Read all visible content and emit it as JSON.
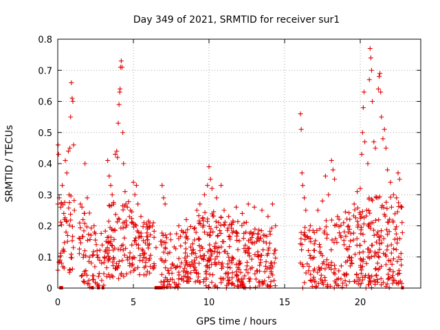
{
  "chart_data": {
    "type": "scatter",
    "title": "Day 349 of 2021, SRMTID for receiver sur1",
    "xlabel": "GPS time / hours",
    "ylabel": "SRMTID / TECUs",
    "xlim": [
      0,
      24
    ],
    "ylim": [
      0,
      0.8
    ],
    "x_ticks": [
      0,
      5,
      10,
      15,
      20
    ],
    "y_ticks": [
      0,
      0.1,
      0.2,
      0.3,
      0.4,
      0.5,
      0.6,
      0.7,
      0.8
    ],
    "x_tick_labels": [
      "0",
      "5",
      "10",
      "15",
      "20"
    ],
    "y_tick_labels": [
      "0",
      "0.1",
      "0.2",
      "0.3",
      "0.4",
      "0.5",
      "0.6",
      "0.7",
      "0.8"
    ],
    "grid": true,
    "marker": "plus",
    "color": "#e00000",
    "series": [
      {
        "name": "SRMTID",
        "points": [
          [
            0.02,
            0.46
          ],
          [
            0.05,
            0.43
          ],
          [
            0.1,
            0.29
          ],
          [
            0.2,
            0.26
          ],
          [
            0.3,
            0.33
          ],
          [
            0.4,
            0.24
          ],
          [
            0.45,
            0.22
          ],
          [
            0.5,
            0.41
          ],
          [
            0.6,
            0.37
          ],
          [
            0.7,
            0.44
          ],
          [
            0.8,
            0.45
          ],
          [
            0.85,
            0.55
          ],
          [
            0.9,
            0.66
          ],
          [
            0.95,
            0.61
          ],
          [
            1.0,
            0.6
          ],
          [
            1.05,
            0.46
          ],
          [
            0.55,
            0.18
          ],
          [
            0.65,
            0.15
          ],
          [
            0.35,
            0.12
          ],
          [
            0.25,
            0.08
          ],
          [
            0.15,
            0.09
          ],
          [
            0.75,
            0.3
          ],
          [
            1.1,
            0.25
          ],
          [
            1.5,
            0.27
          ],
          [
            1.6,
            0.26
          ],
          [
            1.75,
            0.24
          ],
          [
            1.8,
            0.4
          ],
          [
            1.95,
            0.29
          ],
          [
            2.2,
            0.17
          ],
          [
            2.4,
            0.2
          ],
          [
            2.6,
            0.12
          ],
          [
            2.9,
            0.08
          ],
          [
            3.1,
            0.1
          ],
          [
            3.2,
            0.15
          ],
          [
            3.3,
            0.41
          ],
          [
            3.4,
            0.36
          ],
          [
            3.5,
            0.33
          ],
          [
            3.6,
            0.3
          ],
          [
            3.7,
            0.27
          ],
          [
            3.8,
            0.43
          ],
          [
            3.9,
            0.44
          ],
          [
            3.95,
            0.42
          ],
          [
            4.0,
            0.53
          ],
          [
            4.05,
            0.59
          ],
          [
            4.1,
            0.63
          ],
          [
            4.12,
            0.64
          ],
          [
            4.15,
            0.71
          ],
          [
            4.2,
            0.73
          ],
          [
            4.25,
            0.71
          ],
          [
            4.3,
            0.5
          ],
          [
            4.35,
            0.4
          ],
          [
            4.45,
            0.31
          ],
          [
            4.5,
            0.27
          ],
          [
            4.6,
            0.26
          ],
          [
            4.8,
            0.25
          ],
          [
            5.0,
            0.34
          ],
          [
            5.1,
            0.3
          ],
          [
            5.2,
            0.33
          ],
          [
            5.3,
            0.27
          ],
          [
            5.5,
            0.23
          ],
          [
            5.7,
            0.21
          ],
          [
            6.1,
            0.2
          ],
          [
            6.5,
            0.13
          ],
          [
            6.8,
            0.15
          ],
          [
            6.9,
            0.33
          ],
          [
            7.0,
            0.29
          ],
          [
            7.1,
            0.27
          ],
          [
            8.0,
            0.2
          ],
          [
            8.5,
            0.22
          ],
          [
            9.2,
            0.25
          ],
          [
            9.4,
            0.27
          ],
          [
            9.7,
            0.3
          ],
          [
            9.9,
            0.33
          ],
          [
            10.0,
            0.39
          ],
          [
            10.1,
            0.35
          ],
          [
            10.2,
            0.32
          ],
          [
            10.5,
            0.29
          ],
          [
            10.8,
            0.33
          ],
          [
            11.0,
            0.25
          ],
          [
            11.3,
            0.23
          ],
          [
            11.8,
            0.26
          ],
          [
            12.2,
            0.24
          ],
          [
            12.6,
            0.27
          ],
          [
            13.0,
            0.26
          ],
          [
            13.5,
            0.25
          ],
          [
            13.9,
            0.23
          ],
          [
            14.2,
            0.27
          ],
          [
            14.4,
            0.2
          ],
          [
            16.05,
            0.56
          ],
          [
            16.1,
            0.51
          ],
          [
            16.15,
            0.37
          ],
          [
            16.2,
            0.33
          ],
          [
            16.3,
            0.29
          ],
          [
            16.4,
            0.25
          ],
          [
            16.7,
            0.2
          ],
          [
            17.2,
            0.25
          ],
          [
            17.5,
            0.28
          ],
          [
            17.7,
            0.36
          ],
          [
            17.9,
            0.3
          ],
          [
            18.1,
            0.41
          ],
          [
            18.2,
            0.38
          ],
          [
            18.3,
            0.35
          ],
          [
            18.5,
            0.23
          ],
          [
            18.9,
            0.21
          ],
          [
            19.2,
            0.18
          ],
          [
            19.6,
            0.27
          ],
          [
            19.8,
            0.31
          ],
          [
            20.0,
            0.32
          ],
          [
            20.1,
            0.43
          ],
          [
            20.15,
            0.5
          ],
          [
            20.2,
            0.58
          ],
          [
            20.25,
            0.63
          ],
          [
            20.3,
            0.47
          ],
          [
            20.5,
            0.4
          ],
          [
            20.6,
            0.67
          ],
          [
            20.65,
            0.77
          ],
          [
            20.7,
            0.74
          ],
          [
            20.75,
            0.7
          ],
          [
            20.8,
            0.6
          ],
          [
            20.9,
            0.47
          ],
          [
            21.0,
            0.45
          ],
          [
            21.2,
            0.64
          ],
          [
            21.25,
            0.68
          ],
          [
            21.3,
            0.69
          ],
          [
            21.35,
            0.63
          ],
          [
            21.4,
            0.55
          ],
          [
            21.5,
            0.48
          ],
          [
            21.6,
            0.51
          ],
          [
            21.7,
            0.45
          ],
          [
            21.8,
            0.38
          ],
          [
            22.0,
            0.34
          ],
          [
            22.2,
            0.3
          ],
          [
            22.4,
            0.29
          ],
          [
            22.5,
            0.37
          ],
          [
            22.6,
            0.35
          ],
          [
            22.7,
            0.26
          ]
        ]
      }
    ],
    "dense_segments": [
      {
        "x_range": [
          0.0,
          1.1
        ],
        "y_range": [
          0.05,
          0.3
        ],
        "count": 40
      },
      {
        "x_range": [
          1.4,
          2.1
        ],
        "y_range": [
          0.0,
          0.25
        ],
        "count": 35
      },
      {
        "x_range": [
          2.1,
          3.3
        ],
        "y_range": [
          0.0,
          0.2
        ],
        "count": 45
      },
      {
        "x_range": [
          3.3,
          4.9
        ],
        "y_range": [
          0.03,
          0.28
        ],
        "count": 85
      },
      {
        "x_range": [
          4.9,
          6.4
        ],
        "y_range": [
          0.04,
          0.22
        ],
        "count": 75
      },
      {
        "x_range": [
          6.8,
          8.0
        ],
        "y_range": [
          0.0,
          0.18
        ],
        "count": 60
      },
      {
        "x_range": [
          8.0,
          9.3
        ],
        "y_range": [
          0.02,
          0.2
        ],
        "count": 70
      },
      {
        "x_range": [
          9.3,
          11.0
        ],
        "y_range": [
          0.0,
          0.25
        ],
        "count": 110
      },
      {
        "x_range": [
          11.0,
          12.5
        ],
        "y_range": [
          0.0,
          0.22
        ],
        "count": 95
      },
      {
        "x_range": [
          12.5,
          14.4
        ],
        "y_range": [
          0.0,
          0.2
        ],
        "count": 100
      },
      {
        "x_range": [
          16.0,
          17.5
        ],
        "y_range": [
          0.0,
          0.2
        ],
        "count": 65
      },
      {
        "x_range": [
          17.5,
          18.9
        ],
        "y_range": [
          0.0,
          0.23
        ],
        "count": 55
      },
      {
        "x_range": [
          18.9,
          20.4
        ],
        "y_range": [
          0.0,
          0.26
        ],
        "count": 85
      },
      {
        "x_range": [
          20.4,
          21.6
        ],
        "y_range": [
          0.0,
          0.3
        ],
        "count": 80
      },
      {
        "x_range": [
          21.6,
          22.8
        ],
        "y_range": [
          0.0,
          0.3
        ],
        "count": 70
      }
    ],
    "zero_runs": [
      [
        0.1,
        0.35
      ],
      [
        2.2,
        2.3
      ],
      [
        2.6,
        2.7
      ],
      [
        2.9,
        3.05
      ],
      [
        6.4,
        6.95
      ],
      [
        22.7,
        22.8
      ]
    ]
  }
}
